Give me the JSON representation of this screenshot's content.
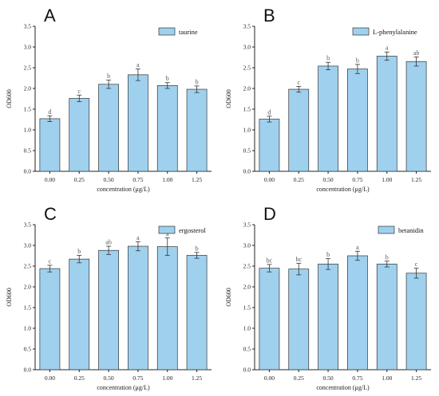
{
  "colors": {
    "bar_fill": "#9fd1ef",
    "bar_stroke": "#333333",
    "axis": "#222222",
    "error": "#333333"
  },
  "chart_data": [
    {
      "type": "bar",
      "panel": "A",
      "legend": "taurine",
      "legend_position": "top-right",
      "xlabel": "concentration (μg/L)",
      "ylabel": "OD600",
      "ylim": [
        0,
        3.5
      ],
      "yticks": [
        "0.0",
        "0.5",
        "1.0",
        "1.5",
        "2.0",
        "2.5",
        "3.0",
        "3.5"
      ],
      "categories": [
        "0.00",
        "0.25",
        "0.50",
        "0.75",
        "1.00",
        "1.25"
      ],
      "values": [
        1.27,
        1.76,
        2.1,
        2.33,
        2.07,
        1.98
      ],
      "errors": [
        0.07,
        0.08,
        0.1,
        0.14,
        0.07,
        0.08
      ],
      "letters": [
        "d",
        "c",
        "b",
        "a",
        "b",
        "b"
      ]
    },
    {
      "type": "bar",
      "panel": "B",
      "legend": "L-phenylalanine",
      "legend_position": "top-right",
      "xlabel": "concentration (μg/L)",
      "ylabel": "OD600",
      "ylim": [
        0,
        3.5
      ],
      "yticks": [
        "0.0",
        "0.5",
        "1.0",
        "1.5",
        "2.0",
        "2.5",
        "3.0",
        "3.5"
      ],
      "categories": [
        "0.00",
        "0.25",
        "0.50",
        "0.75",
        "1.00",
        "1.25"
      ],
      "values": [
        1.26,
        1.98,
        2.54,
        2.47,
        2.78,
        2.65
      ],
      "errors": [
        0.07,
        0.07,
        0.09,
        0.11,
        0.1,
        0.11
      ],
      "letters": [
        "d",
        "c",
        "b",
        "b",
        "a",
        "ab"
      ]
    },
    {
      "type": "bar",
      "panel": "C",
      "legend": "ergosterol",
      "legend_position": "top-right",
      "xlabel": "concentration (μg/L)",
      "ylabel": "OD600",
      "ylim": [
        0,
        3.5
      ],
      "yticks": [
        "0.0",
        "0.5",
        "1.0",
        "1.5",
        "2.0",
        "2.5",
        "3.0",
        "3.5"
      ],
      "categories": [
        "0.00",
        "0.25",
        "0.50",
        "0.75",
        "1.00",
        "1.25"
      ],
      "values": [
        2.44,
        2.67,
        2.88,
        2.98,
        2.97,
        2.76
      ],
      "errors": [
        0.08,
        0.09,
        0.1,
        0.11,
        0.21,
        0.07
      ],
      "letters": [
        "c",
        "b",
        "ab",
        "a",
        "a",
        "b"
      ]
    },
    {
      "type": "bar",
      "panel": "D",
      "legend": "betanidin",
      "legend_position": "top-right",
      "xlabel": "concentration (μg/L)",
      "ylabel": "OD600",
      "ylim": [
        0,
        3.5
      ],
      "yticks": [
        "0.0",
        "0.5",
        "1.0",
        "1.5",
        "2.0",
        "2.5",
        "3.0",
        "3.5"
      ],
      "categories": [
        "0.00",
        "0.25",
        "0.50",
        "0.75",
        "1.00",
        "1.25"
      ],
      "values": [
        2.45,
        2.43,
        2.55,
        2.75,
        2.55,
        2.33
      ],
      "errors": [
        0.09,
        0.14,
        0.13,
        0.11,
        0.07,
        0.12
      ],
      "letters": [
        "bc",
        "bc",
        "b",
        "a",
        "b",
        "c"
      ]
    }
  ]
}
